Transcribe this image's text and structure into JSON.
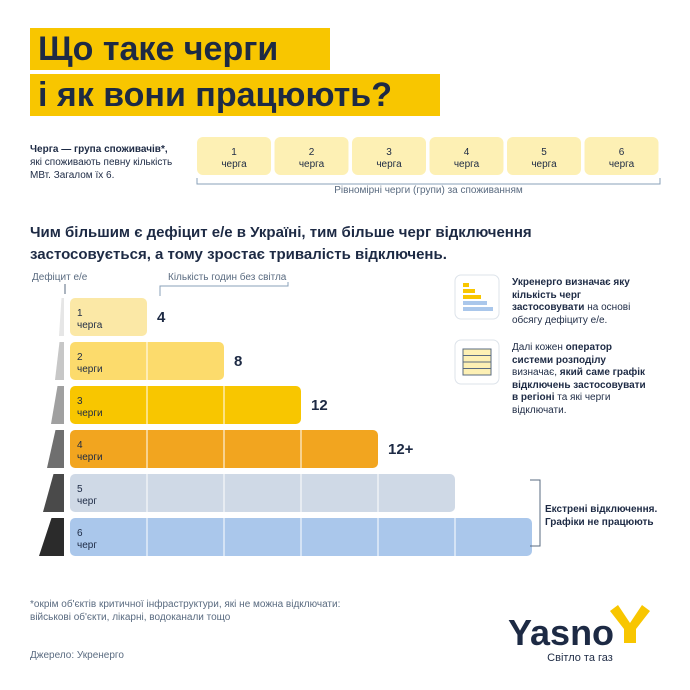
{
  "header": {
    "title": [
      "Що таке черги",
      "і як вони працюють?"
    ]
  },
  "definition": {
    "parts": [
      {
        "text": "Черга — група споживачів*,",
        "bold": true
      },
      {
        "text": " які споживають певну кількість МВт. Загалом їх 6."
      }
    ]
  },
  "queues": [
    {
      "number": "1",
      "label": "черга"
    },
    {
      "number": "2",
      "label": "черга"
    },
    {
      "number": "3",
      "label": "черга"
    },
    {
      "number": "4",
      "label": "черга"
    },
    {
      "number": "5",
      "label": "черга"
    },
    {
      "number": "6",
      "label": "черга"
    }
  ],
  "queues_caption": "Рівномірні черги (групи) за споживанням",
  "headline": "Чим більшим є дефіцит е/е в Україні, тим більше черг відключення застосовується, а тому зростає тривалість відключень.",
  "diagram": {
    "deficit_label": "Дефіцит е/е",
    "hours_label": "Кількість годин без світла",
    "bars": [
      {
        "number": "1",
        "label": "черга",
        "hours": "4",
        "color": "#fbe8a6"
      },
      {
        "number": "2",
        "label": "черги",
        "hours": "8",
        "color": "#fcdb6c"
      },
      {
        "number": "3",
        "label": "черги",
        "hours": "12",
        "color": "#f8c600"
      },
      {
        "number": "4",
        "label": "черги",
        "hours": "12+",
        "color": "#f2a51f"
      },
      {
        "number": "5",
        "label": "черг",
        "color": "#cfd9e6"
      },
      {
        "number": "6",
        "label": "черг",
        "color": "#aac7eb"
      }
    ],
    "emergency": "Екстрені відключення. Графіки не працюють"
  },
  "info": [
    {
      "parts": [
        {
          "text": "Укренерго визначає яку кількість черг застосовувати",
          "bold": true
        },
        {
          "text": " на основі обсягу дефіциту е/е."
        }
      ]
    },
    {
      "parts": [
        {
          "text": "Далі кожен "
        },
        {
          "text": "оператор системи розподілу",
          "bold": true
        },
        {
          "text": " визначає, "
        },
        {
          "text": "який саме графік відключень застосовувати в регіоні",
          "bold": true
        },
        {
          "text": " та які черги відключати."
        }
      ]
    }
  ],
  "footnote": "*окрім об'єктів критичної інфраструктури, які не можна відключати: військові об'єкти, лікарні, водоканали тощо",
  "source": "Джерело: Укренерго",
  "logo": {
    "name": "Yasno",
    "tagline": "Світло та газ"
  }
}
